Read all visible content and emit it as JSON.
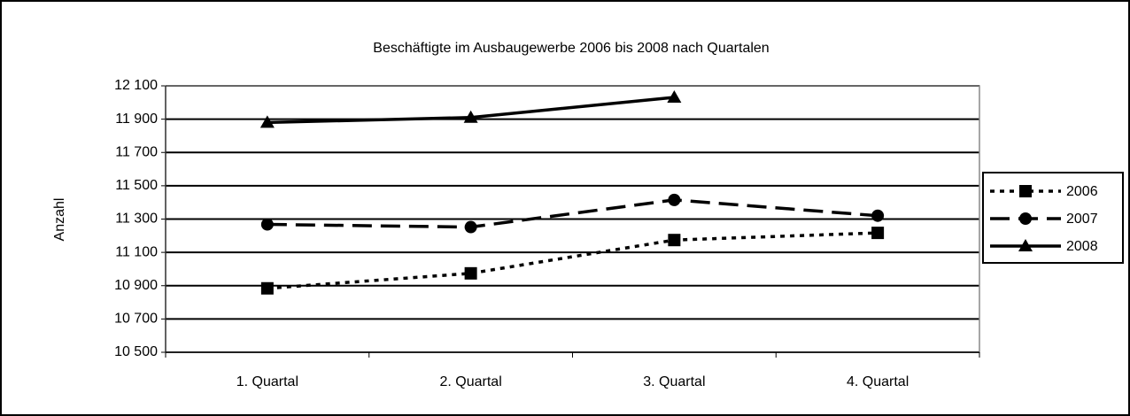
{
  "chart_data": {
    "type": "line",
    "title": "Beschäftigte im Ausbaugewerbe 2006 bis 2008 nach Quartalen",
    "y_label": "Anzahl",
    "categories": [
      "1. Quartal",
      "2. Quartal",
      "3. Quartal",
      "4. Quartal"
    ],
    "series": [
      {
        "name": "2006",
        "color": "#000000",
        "dash": "dotted",
        "marker": "square",
        "values": [
          10884,
          10974,
          11174,
          11217
        ]
      },
      {
        "name": "2007",
        "color": "#000000",
        "dash": "dashed",
        "marker": "circle",
        "values": [
          11268,
          11252,
          11415,
          11320
        ]
      },
      {
        "name": "2008",
        "color": "#000000",
        "dash": "solid",
        "marker": "triangle",
        "values": [
          11880,
          11910,
          12031,
          null
        ]
      }
    ],
    "ylim": [
      10500,
      12100
    ],
    "yticks": [
      {
        "value": 10500,
        "label": "10 500"
      },
      {
        "value": 10700,
        "label": "10 700"
      },
      {
        "value": 10900,
        "label": "10 900"
      },
      {
        "value": 11100,
        "label": "11 100"
      },
      {
        "value": 11300,
        "label": "11 300"
      },
      {
        "value": 11500,
        "label": "11 500"
      },
      {
        "value": 11700,
        "label": "11 700"
      },
      {
        "value": 11900,
        "label": "11 900"
      },
      {
        "value": 12100,
        "label": "12 100"
      }
    ],
    "grid": true,
    "legend": "right"
  }
}
